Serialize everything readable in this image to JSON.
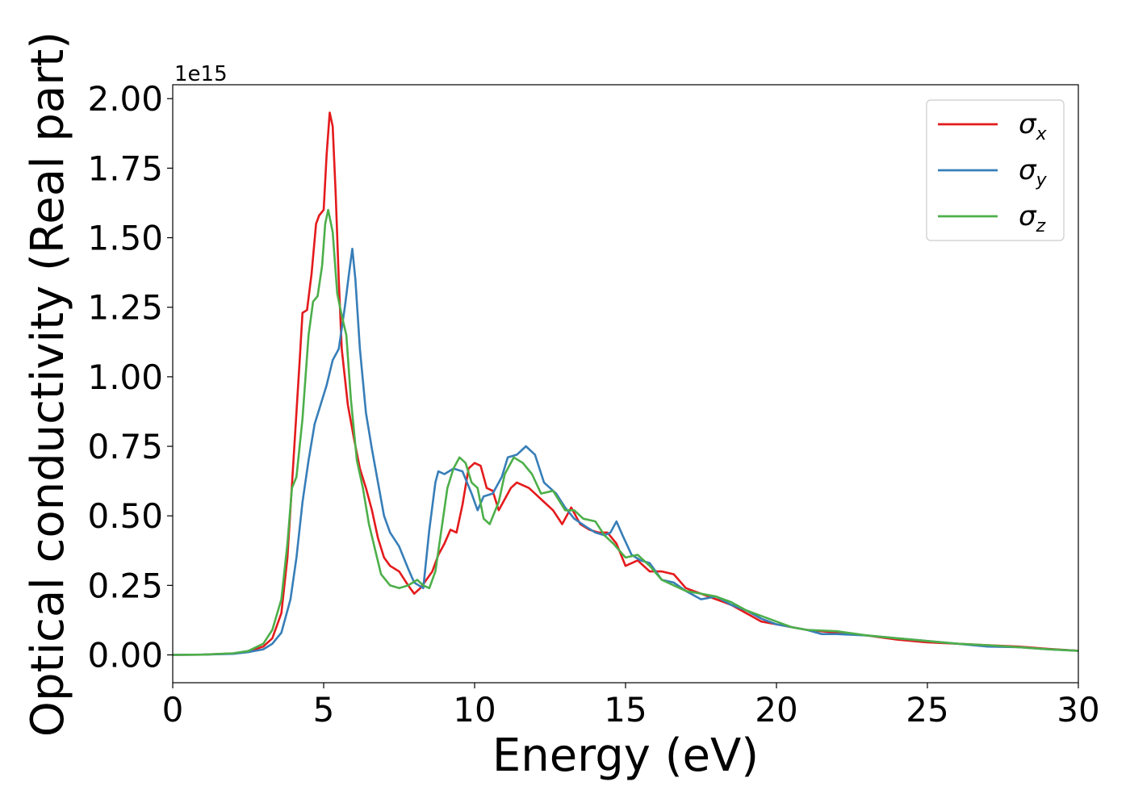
{
  "chart_data": {
    "type": "line",
    "xlabel": "Energy (eV)",
    "ylabel": "Optical conductivity (Real part)",
    "y_offset_label": "1e15",
    "xlim": [
      0,
      30
    ],
    "ylim": [
      -0.1,
      2.05
    ],
    "x_ticks": [
      0,
      5,
      10,
      15,
      20,
      25,
      30
    ],
    "x_tick_labels": [
      "0",
      "5",
      "10",
      "15",
      "20",
      "25",
      "30"
    ],
    "y_ticks": [
      0,
      0.25,
      0.5,
      0.75,
      1.0,
      1.25,
      1.5,
      1.75,
      2.0
    ],
    "y_tick_labels": [
      "0.00",
      "0.25",
      "0.50",
      "0.75",
      "1.00",
      "1.25",
      "1.50",
      "1.75",
      "2.00"
    ],
    "grid": false,
    "legend_position": "top-right",
    "series": [
      {
        "name": "σx",
        "symbol": "σ",
        "subscript": "x",
        "color": "#e41a1c",
        "points": [
          [
            0,
            0
          ],
          [
            1,
            0.001
          ],
          [
            2,
            0.005
          ],
          [
            2.5,
            0.012
          ],
          [
            3,
            0.03
          ],
          [
            3.3,
            0.06
          ],
          [
            3.6,
            0.15
          ],
          [
            3.8,
            0.35
          ],
          [
            4,
            0.7
          ],
          [
            4.2,
            1.05
          ],
          [
            4.3,
            1.23
          ],
          [
            4.45,
            1.24
          ],
          [
            4.6,
            1.37
          ],
          [
            4.75,
            1.55
          ],
          [
            4.85,
            1.58
          ],
          [
            5.0,
            1.6
          ],
          [
            5.1,
            1.8
          ],
          [
            5.2,
            1.95
          ],
          [
            5.3,
            1.9
          ],
          [
            5.4,
            1.65
          ],
          [
            5.5,
            1.35
          ],
          [
            5.6,
            1.1
          ],
          [
            5.8,
            0.9
          ],
          [
            6.0,
            0.78
          ],
          [
            6.2,
            0.67
          ],
          [
            6.4,
            0.6
          ],
          [
            6.6,
            0.52
          ],
          [
            6.8,
            0.42
          ],
          [
            7.0,
            0.35
          ],
          [
            7.2,
            0.32
          ],
          [
            7.5,
            0.3
          ],
          [
            7.8,
            0.25
          ],
          [
            8.0,
            0.22
          ],
          [
            8.2,
            0.24
          ],
          [
            8.4,
            0.27
          ],
          [
            8.6,
            0.3
          ],
          [
            8.8,
            0.36
          ],
          [
            9.0,
            0.4
          ],
          [
            9.2,
            0.45
          ],
          [
            9.4,
            0.44
          ],
          [
            9.6,
            0.54
          ],
          [
            9.8,
            0.67
          ],
          [
            10.0,
            0.69
          ],
          [
            10.2,
            0.68
          ],
          [
            10.4,
            0.6
          ],
          [
            10.6,
            0.59
          ],
          [
            10.8,
            0.52
          ],
          [
            11.0,
            0.56
          ],
          [
            11.2,
            0.6
          ],
          [
            11.4,
            0.62
          ],
          [
            11.6,
            0.61
          ],
          [
            11.8,
            0.6
          ],
          [
            12.0,
            0.58
          ],
          [
            12.3,
            0.55
          ],
          [
            12.6,
            0.52
          ],
          [
            12.9,
            0.47
          ],
          [
            13.2,
            0.53
          ],
          [
            13.5,
            0.47
          ],
          [
            13.8,
            0.45
          ],
          [
            14.1,
            0.44
          ],
          [
            14.4,
            0.44
          ],
          [
            14.7,
            0.4
          ],
          [
            15.0,
            0.32
          ],
          [
            15.4,
            0.34
          ],
          [
            15.8,
            0.3
          ],
          [
            16.2,
            0.3
          ],
          [
            16.6,
            0.29
          ],
          [
            17.0,
            0.24
          ],
          [
            17.5,
            0.22
          ],
          [
            18.0,
            0.2
          ],
          [
            18.5,
            0.18
          ],
          [
            19.0,
            0.15
          ],
          [
            19.5,
            0.12
          ],
          [
            20.0,
            0.11
          ],
          [
            20.5,
            0.1
          ],
          [
            21,
            0.09
          ],
          [
            22,
            0.08
          ],
          [
            23,
            0.07
          ],
          [
            24,
            0.055
          ],
          [
            25,
            0.045
          ],
          [
            26,
            0.04
          ],
          [
            27,
            0.035
          ],
          [
            28,
            0.03
          ],
          [
            29,
            0.022
          ],
          [
            30,
            0.015
          ]
        ]
      },
      {
        "name": "σy",
        "symbol": "σ",
        "subscript": "y",
        "color": "#377eb8",
        "points": [
          [
            0,
            0
          ],
          [
            1,
            0.001
          ],
          [
            2,
            0.004
          ],
          [
            2.5,
            0.01
          ],
          [
            3,
            0.02
          ],
          [
            3.3,
            0.04
          ],
          [
            3.6,
            0.08
          ],
          [
            3.9,
            0.2
          ],
          [
            4.1,
            0.35
          ],
          [
            4.3,
            0.55
          ],
          [
            4.5,
            0.7
          ],
          [
            4.7,
            0.83
          ],
          [
            4.9,
            0.9
          ],
          [
            5.1,
            0.97
          ],
          [
            5.3,
            1.06
          ],
          [
            5.5,
            1.1
          ],
          [
            5.7,
            1.25
          ],
          [
            5.85,
            1.38
          ],
          [
            5.95,
            1.46
          ],
          [
            6.05,
            1.35
          ],
          [
            6.2,
            1.1
          ],
          [
            6.4,
            0.87
          ],
          [
            6.6,
            0.74
          ],
          [
            6.8,
            0.62
          ],
          [
            7.0,
            0.5
          ],
          [
            7.2,
            0.44
          ],
          [
            7.5,
            0.39
          ],
          [
            7.8,
            0.31
          ],
          [
            8.0,
            0.26
          ],
          [
            8.3,
            0.24
          ],
          [
            8.5,
            0.45
          ],
          [
            8.7,
            0.62
          ],
          [
            8.8,
            0.66
          ],
          [
            9.0,
            0.65
          ],
          [
            9.3,
            0.67
          ],
          [
            9.6,
            0.66
          ],
          [
            9.9,
            0.58
          ],
          [
            10.1,
            0.52
          ],
          [
            10.3,
            0.57
          ],
          [
            10.6,
            0.58
          ],
          [
            10.9,
            0.64
          ],
          [
            11.1,
            0.71
          ],
          [
            11.4,
            0.72
          ],
          [
            11.7,
            0.75
          ],
          [
            12.0,
            0.72
          ],
          [
            12.3,
            0.62
          ],
          [
            12.7,
            0.58
          ],
          [
            13.0,
            0.53
          ],
          [
            13.3,
            0.49
          ],
          [
            13.7,
            0.46
          ],
          [
            14.0,
            0.44
          ],
          [
            14.3,
            0.43
          ],
          [
            14.5,
            0.44
          ],
          [
            14.7,
            0.48
          ],
          [
            14.9,
            0.43
          ],
          [
            15.2,
            0.36
          ],
          [
            15.5,
            0.34
          ],
          [
            15.8,
            0.33
          ],
          [
            16.2,
            0.27
          ],
          [
            16.6,
            0.26
          ],
          [
            17.0,
            0.23
          ],
          [
            17.5,
            0.2
          ],
          [
            18.0,
            0.21
          ],
          [
            18.5,
            0.18
          ],
          [
            19.0,
            0.16
          ],
          [
            19.5,
            0.13
          ],
          [
            20.0,
            0.11
          ],
          [
            20.5,
            0.1
          ],
          [
            21,
            0.09
          ],
          [
            21.5,
            0.075
          ],
          [
            22,
            0.075
          ],
          [
            23,
            0.07
          ],
          [
            24,
            0.06
          ],
          [
            25,
            0.05
          ],
          [
            26,
            0.04
          ],
          [
            27,
            0.03
          ],
          [
            28,
            0.028
          ],
          [
            29,
            0.02
          ],
          [
            30,
            0.015
          ]
        ]
      },
      {
        "name": "σz",
        "symbol": "σ",
        "subscript": "z",
        "color": "#4daf4a",
        "points": [
          [
            0,
            0
          ],
          [
            1,
            0.001
          ],
          [
            2,
            0.006
          ],
          [
            2.5,
            0.014
          ],
          [
            3,
            0.04
          ],
          [
            3.3,
            0.09
          ],
          [
            3.6,
            0.2
          ],
          [
            3.8,
            0.4
          ],
          [
            3.95,
            0.6
          ],
          [
            4.1,
            0.64
          ],
          [
            4.3,
            0.85
          ],
          [
            4.5,
            1.15
          ],
          [
            4.65,
            1.27
          ],
          [
            4.8,
            1.29
          ],
          [
            4.95,
            1.4
          ],
          [
            5.05,
            1.55
          ],
          [
            5.15,
            1.6
          ],
          [
            5.3,
            1.52
          ],
          [
            5.45,
            1.3
          ],
          [
            5.6,
            1.22
          ],
          [
            5.75,
            1.15
          ],
          [
            5.9,
            0.92
          ],
          [
            6.1,
            0.7
          ],
          [
            6.3,
            0.6
          ],
          [
            6.5,
            0.47
          ],
          [
            6.7,
            0.38
          ],
          [
            6.9,
            0.29
          ],
          [
            7.2,
            0.25
          ],
          [
            7.5,
            0.24
          ],
          [
            7.8,
            0.25
          ],
          [
            8.1,
            0.27
          ],
          [
            8.3,
            0.25
          ],
          [
            8.5,
            0.24
          ],
          [
            8.7,
            0.3
          ],
          [
            8.9,
            0.45
          ],
          [
            9.1,
            0.6
          ],
          [
            9.3,
            0.67
          ],
          [
            9.5,
            0.71
          ],
          [
            9.7,
            0.69
          ],
          [
            9.9,
            0.62
          ],
          [
            10.1,
            0.6
          ],
          [
            10.3,
            0.49
          ],
          [
            10.5,
            0.47
          ],
          [
            10.8,
            0.55
          ],
          [
            11.0,
            0.65
          ],
          [
            11.3,
            0.71
          ],
          [
            11.6,
            0.69
          ],
          [
            11.9,
            0.65
          ],
          [
            12.2,
            0.58
          ],
          [
            12.6,
            0.59
          ],
          [
            13.0,
            0.52
          ],
          [
            13.3,
            0.52
          ],
          [
            13.6,
            0.49
          ],
          [
            14.0,
            0.48
          ],
          [
            14.3,
            0.43
          ],
          [
            14.6,
            0.4
          ],
          [
            15.0,
            0.35
          ],
          [
            15.4,
            0.36
          ],
          [
            15.8,
            0.32
          ],
          [
            16.2,
            0.27
          ],
          [
            16.6,
            0.25
          ],
          [
            17.0,
            0.23
          ],
          [
            17.5,
            0.22
          ],
          [
            18.0,
            0.21
          ],
          [
            18.5,
            0.19
          ],
          [
            19.0,
            0.16
          ],
          [
            19.5,
            0.14
          ],
          [
            20.0,
            0.12
          ],
          [
            20.5,
            0.1
          ],
          [
            21,
            0.09
          ],
          [
            22,
            0.085
          ],
          [
            23,
            0.07
          ],
          [
            24,
            0.06
          ],
          [
            25,
            0.05
          ],
          [
            26,
            0.04
          ],
          [
            27,
            0.035
          ],
          [
            28,
            0.028
          ],
          [
            29,
            0.02
          ],
          [
            30,
            0.015
          ]
        ]
      }
    ]
  }
}
